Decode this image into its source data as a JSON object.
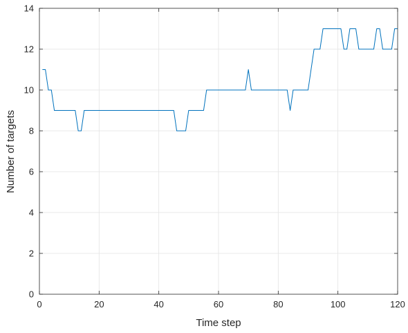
{
  "chart_data": {
    "type": "line",
    "title": "",
    "xlabel": "Time step",
    "ylabel": "Number of targets",
    "xlim": [
      0,
      120
    ],
    "ylim": [
      0,
      14
    ],
    "x_ticks": [
      0,
      20,
      40,
      60,
      80,
      100,
      120
    ],
    "y_ticks": [
      0,
      2,
      4,
      6,
      8,
      10,
      12,
      14
    ],
    "x_tick_labels": [
      "0",
      "20",
      "40",
      "60",
      "80",
      "100",
      "120"
    ],
    "y_tick_labels": [
      "0",
      "2",
      "4",
      "6",
      "8",
      "10",
      "12",
      "14"
    ],
    "grid": true,
    "series": [
      {
        "color": "#0072BD",
        "x": [
          1,
          2,
          3,
          4,
          5,
          6,
          7,
          8,
          9,
          10,
          11,
          12,
          13,
          14,
          15,
          16,
          17,
          18,
          19,
          20,
          21,
          22,
          23,
          24,
          25,
          26,
          27,
          28,
          29,
          30,
          31,
          32,
          33,
          34,
          35,
          36,
          37,
          38,
          39,
          40,
          41,
          42,
          43,
          44,
          45,
          46,
          47,
          48,
          49,
          50,
          51,
          52,
          53,
          54,
          55,
          56,
          57,
          58,
          59,
          60,
          61,
          62,
          63,
          64,
          65,
          66,
          67,
          68,
          69,
          70,
          71,
          72,
          73,
          74,
          75,
          76,
          77,
          78,
          79,
          80,
          81,
          82,
          83,
          84,
          85,
          86,
          87,
          88,
          89,
          90,
          91,
          92,
          93,
          94,
          95,
          96,
          97,
          98,
          99,
          100,
          101,
          102,
          103,
          104,
          105,
          106,
          107,
          108,
          109,
          110,
          111,
          112,
          113,
          114,
          115,
          116,
          117,
          118,
          119,
          120
        ],
        "y": [
          11,
          11,
          10,
          10,
          9,
          9,
          9,
          9,
          9,
          9,
          9,
          9,
          8,
          8,
          9,
          9,
          9,
          9,
          9,
          9,
          9,
          9,
          9,
          9,
          9,
          9,
          9,
          9,
          9,
          9,
          9,
          9,
          9,
          9,
          9,
          9,
          9,
          9,
          9,
          9,
          9,
          9,
          9,
          9,
          9,
          8,
          8,
          8,
          8,
          9,
          9,
          9,
          9,
          9,
          9,
          10,
          10,
          10,
          10,
          10,
          10,
          10,
          10,
          10,
          10,
          10,
          10,
          10,
          10,
          11,
          10,
          10,
          10,
          10,
          10,
          10,
          10,
          10,
          10,
          10,
          10,
          10,
          10,
          9,
          10,
          10,
          10,
          10,
          10,
          10,
          11,
          12,
          12,
          12,
          13,
          13,
          13,
          13,
          13,
          13,
          13,
          12,
          12,
          13,
          13,
          13,
          12,
          12,
          12,
          12,
          12,
          12,
          13,
          13,
          12,
          12,
          12,
          12,
          13,
          13
        ]
      }
    ]
  }
}
